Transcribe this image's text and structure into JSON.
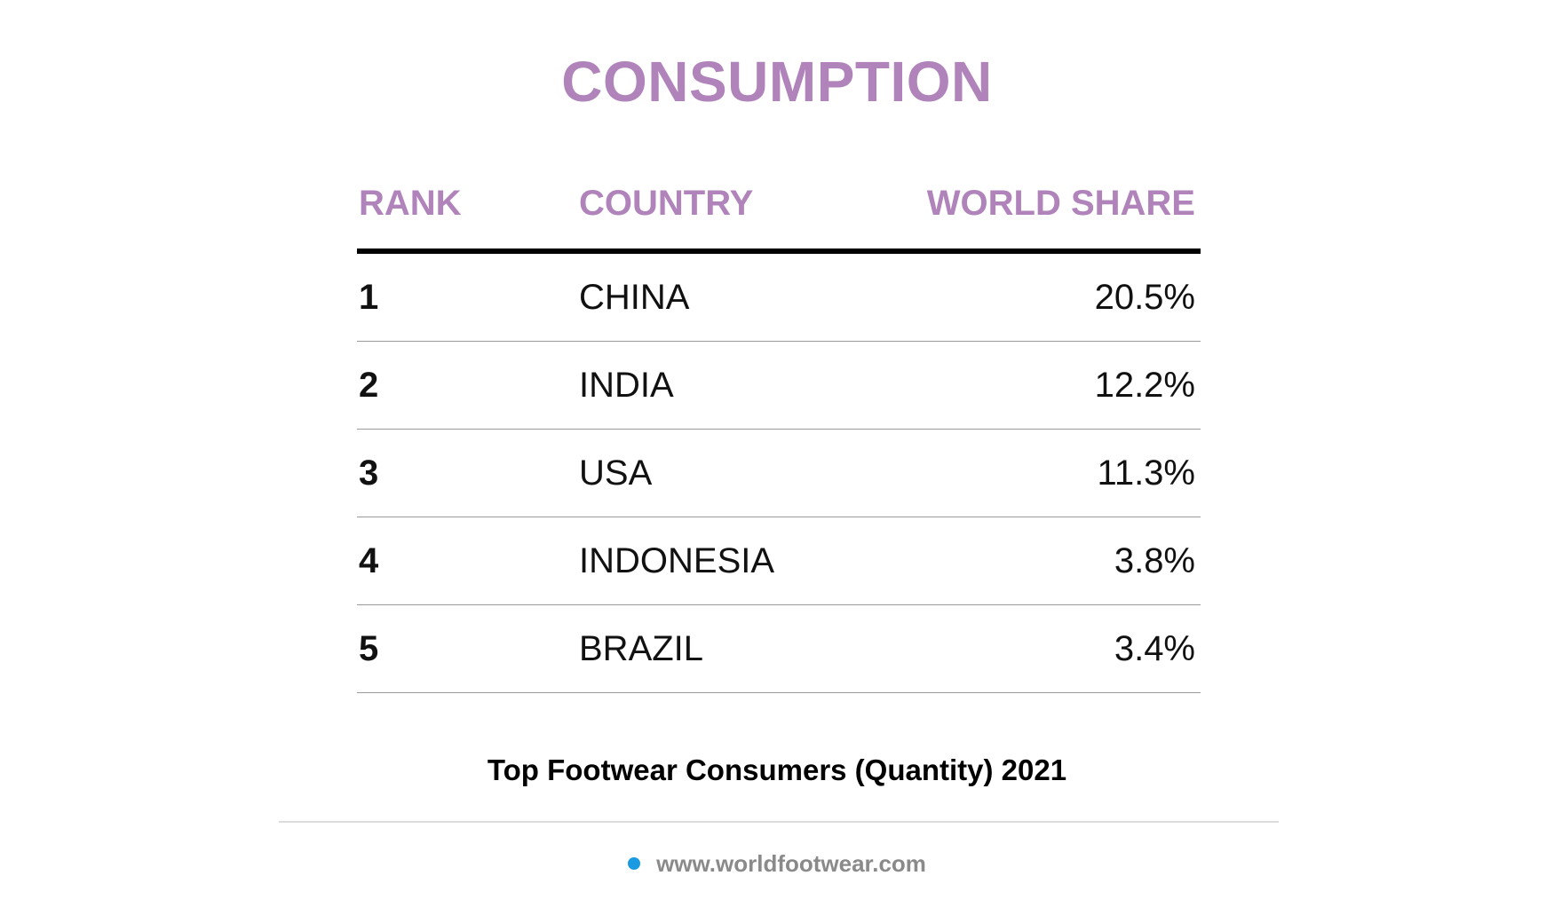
{
  "colors": {
    "accent": "#b083bb",
    "text": "#111111",
    "rule": "#9a9a9a",
    "footer_text": "#8a8a8a",
    "bullet": "#1a9ae0"
  },
  "header": {
    "title": "CONSUMPTION"
  },
  "chart_data": {
    "type": "table",
    "title": "CONSUMPTION",
    "subtitle": "Top Footwear Consumers (Quantity) 2021",
    "columns": [
      "RANK",
      "COUNTRY",
      "WORLD SHARE"
    ],
    "rows": [
      {
        "rank": "1",
        "country": "CHINA",
        "share": "20.5%"
      },
      {
        "rank": "2",
        "country": "INDIA",
        "share": "12.2%"
      },
      {
        "rank": "3",
        "country": "USA",
        "share": "11.3%"
      },
      {
        "rank": "4",
        "country": "INDONESIA",
        "share": "3.8%"
      },
      {
        "rank": "5",
        "country": "BRAZIL",
        "share": "3.4%"
      }
    ],
    "values": [
      20.5,
      12.2,
      11.3,
      3.8,
      3.4
    ],
    "unit": "%"
  },
  "footer": {
    "url": "www.worldfootwear.com",
    "bullet_icon": "dot-icon"
  }
}
